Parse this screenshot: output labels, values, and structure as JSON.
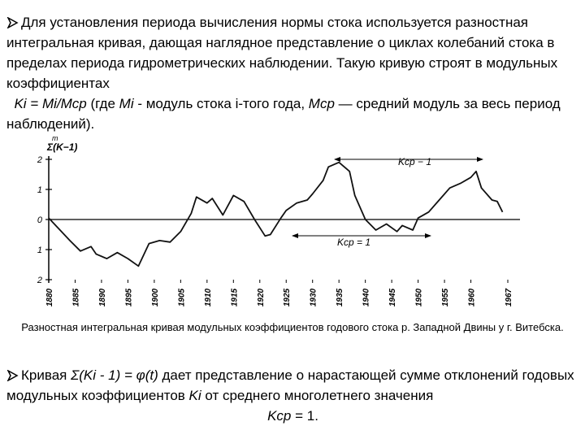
{
  "paragraph1": {
    "runs": [
      "Для установления периода вычисления нормы стока используется разностная интегральная кривая, дающая наглядное представление о циклах колебаний стока в пределах периода гидрометрических наблюдении. Такую кривую строят в модульных коэффициентах",
      "Ki = Mi/Mср",
      " (где ",
      "Mi",
      " - модуль стока i-того года, ",
      "Mср",
      " — средний модуль за весь период наблюдений)."
    ]
  },
  "chart_data": {
    "type": "line",
    "ylabel_sup": "m",
    "ylabel": "Σ(K−1)",
    "annotations": [
      "Kср − 1",
      "Kср = 1"
    ],
    "color": "#111111",
    "x": [
      1880,
      1884,
      1886,
      1888,
      1889,
      1891,
      1893,
      1895,
      1897,
      1899,
      1901,
      1903,
      1905,
      1907,
      1908,
      1910,
      1911,
      1913,
      1915,
      1917,
      1919,
      1921,
      1922,
      1924,
      1925,
      1927,
      1929,
      1930,
      1932,
      1933,
      1935,
      1937,
      1938,
      1940,
      1942,
      1944,
      1946,
      1947,
      1949,
      1950,
      1952,
      1954,
      1956,
      1958,
      1960,
      1961,
      1962,
      1964,
      1965,
      1966
    ],
    "values": [
      0.05,
      -0.7,
      -1.05,
      -0.9,
      -1.15,
      -1.3,
      -1.1,
      -1.3,
      -1.55,
      -0.8,
      -0.7,
      -0.75,
      -0.4,
      0.2,
      0.75,
      0.55,
      0.7,
      0.15,
      0.8,
      0.6,
      0,
      -0.55,
      -0.5,
      0.05,
      0.3,
      0.55,
      0.65,
      0.85,
      1.3,
      1.75,
      1.9,
      1.6,
      0.8,
      0,
      -0.35,
      -0.15,
      -0.4,
      -0.2,
      -0.35,
      0.05,
      0.25,
      0.65,
      1.05,
      1.2,
      1.4,
      1.6,
      1.05,
      0.65,
      0.6,
      0.25
    ],
    "xlim": [
      1880,
      1967
    ],
    "xticks": [
      1880,
      1885,
      1890,
      1895,
      1900,
      1905,
      1910,
      1915,
      1920,
      1925,
      1930,
      1935,
      1940,
      1945,
      1950,
      1955,
      1960,
      1967
    ],
    "ylim": [
      -2,
      2
    ],
    "yticks": [
      {
        "value": -2,
        "label": "2"
      },
      {
        "value": -1,
        "label": "1"
      },
      0,
      1,
      2
    ]
  },
  "caption": "Разностная интегральная кривая модульных коэффициентов годового стока р. Западной Двины у г. Витебска.",
  "paragraph2": {
    "runs": [
      "Кривая ",
      "Σ(Ki - 1) = φ(t)",
      " дает представление о нарастающей сумме отклонений годовых модульных коэффициентов ",
      "Ki",
      " от среднего многолетнего значения",
      "Kср",
      " = 1."
    ]
  }
}
